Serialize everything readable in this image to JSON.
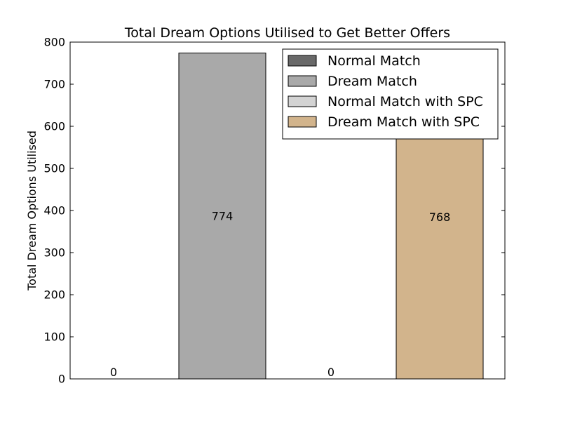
{
  "chart_data": {
    "type": "bar",
    "title": "Total Dream Options Utilised to Get Better Offers",
    "xlabel": "",
    "ylabel": "Total Dream Options Utilised",
    "ylim": [
      0,
      800
    ],
    "yticks": [
      0,
      100,
      200,
      300,
      400,
      500,
      600,
      700,
      800
    ],
    "xticks_visible": false,
    "grid": false,
    "legend_position": "top-right",
    "bars": [
      {
        "series": "Normal Match",
        "value": 0,
        "label": "0",
        "color": "#696969"
      },
      {
        "series": "Dream Match",
        "value": 774,
        "label": "774",
        "color": "#a9a9a9"
      },
      {
        "series": "Normal Match with SPC",
        "value": 0,
        "label": "0",
        "color": "#d3d3d3"
      },
      {
        "series": "Dream Match with SPC",
        "value": 768,
        "label": "768",
        "color": "#d2b48c"
      }
    ],
    "legend": [
      {
        "name": "Normal Match",
        "color": "#696969"
      },
      {
        "name": "Dream Match",
        "color": "#a9a9a9"
      },
      {
        "name": "Normal Match with SPC",
        "color": "#d3d3d3"
      },
      {
        "name": "Dream Match with SPC",
        "color": "#d2b48c"
      }
    ]
  }
}
